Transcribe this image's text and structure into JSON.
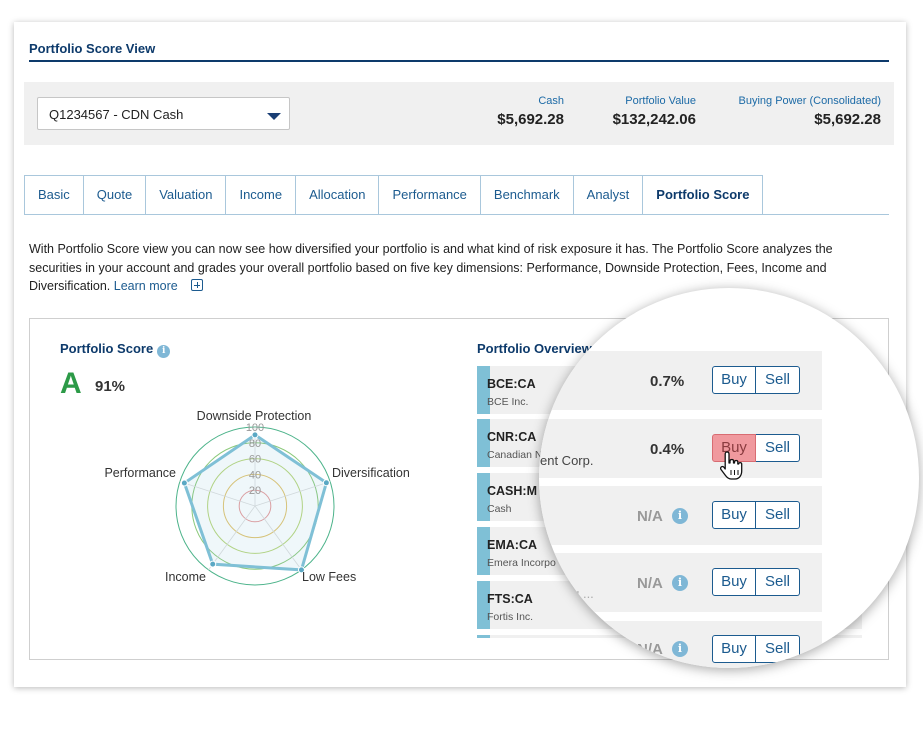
{
  "page": {
    "title": "Portfolio Score View"
  },
  "account": {
    "selected": "Q1234567 - CDN Cash",
    "metrics": [
      {
        "label": "Cash",
        "value": "$5,692.28"
      },
      {
        "label": "Portfolio Value",
        "value": "$132,242.06"
      },
      {
        "label": "Buying Power (Consolidated)",
        "value": "$5,692.28"
      }
    ]
  },
  "tabs": [
    {
      "label": "Basic"
    },
    {
      "label": "Quote"
    },
    {
      "label": "Valuation"
    },
    {
      "label": "Income"
    },
    {
      "label": "Allocation"
    },
    {
      "label": "Performance"
    },
    {
      "label": "Benchmark"
    },
    {
      "label": "Analyst"
    },
    {
      "label": "Portfolio Score",
      "active": true
    }
  ],
  "description": {
    "text": "With Portfolio Score view you can now see how diversified your portfolio is and what kind of risk exposure it has. The Portfolio Score analyzes the securities in your account and grades your overall portfolio based on five key dimensions: Performance, Downside Protection, Fees, Income and Diversification.",
    "link": "Learn more"
  },
  "score": {
    "title": "Portfolio Score",
    "grade": "A",
    "percent": "91%",
    "grade_color": "#2c9a47"
  },
  "radar": {
    "axes": [
      "Downside Protection",
      "Diversification",
      "Low Fees",
      "Income",
      "Performance"
    ],
    "scale_labels": [
      "100",
      "80",
      "60",
      "40",
      "20"
    ],
    "values": [
      90,
      95,
      100,
      91,
      94
    ],
    "line_color": "#7fc0d6"
  },
  "overview": {
    "title": "Portfolio Overview",
    "holdings": [
      {
        "symbol": "BCE:CA",
        "name": "BCE Inc.",
        "weight": "0.7%"
      },
      {
        "symbol": "CNR:CA",
        "name": "Canadian N",
        "weight": "0.4%",
        "name_tail": "ent Corp."
      },
      {
        "symbol": "CASH:M",
        "name": "Cash",
        "weight": "N/A"
      },
      {
        "symbol": "EMA:CA",
        "name": "Emera Incorpo",
        "weight": "N/A",
        "fragment": "ing ..."
      },
      {
        "symbol": "FTS:CA",
        "name": "Fortis Inc.",
        "weight": "N/A"
      },
      {
        "weight": "N/A"
      }
    ],
    "buy_label": "Buy",
    "sell_label": "Sell",
    "info_glyph": "i"
  }
}
